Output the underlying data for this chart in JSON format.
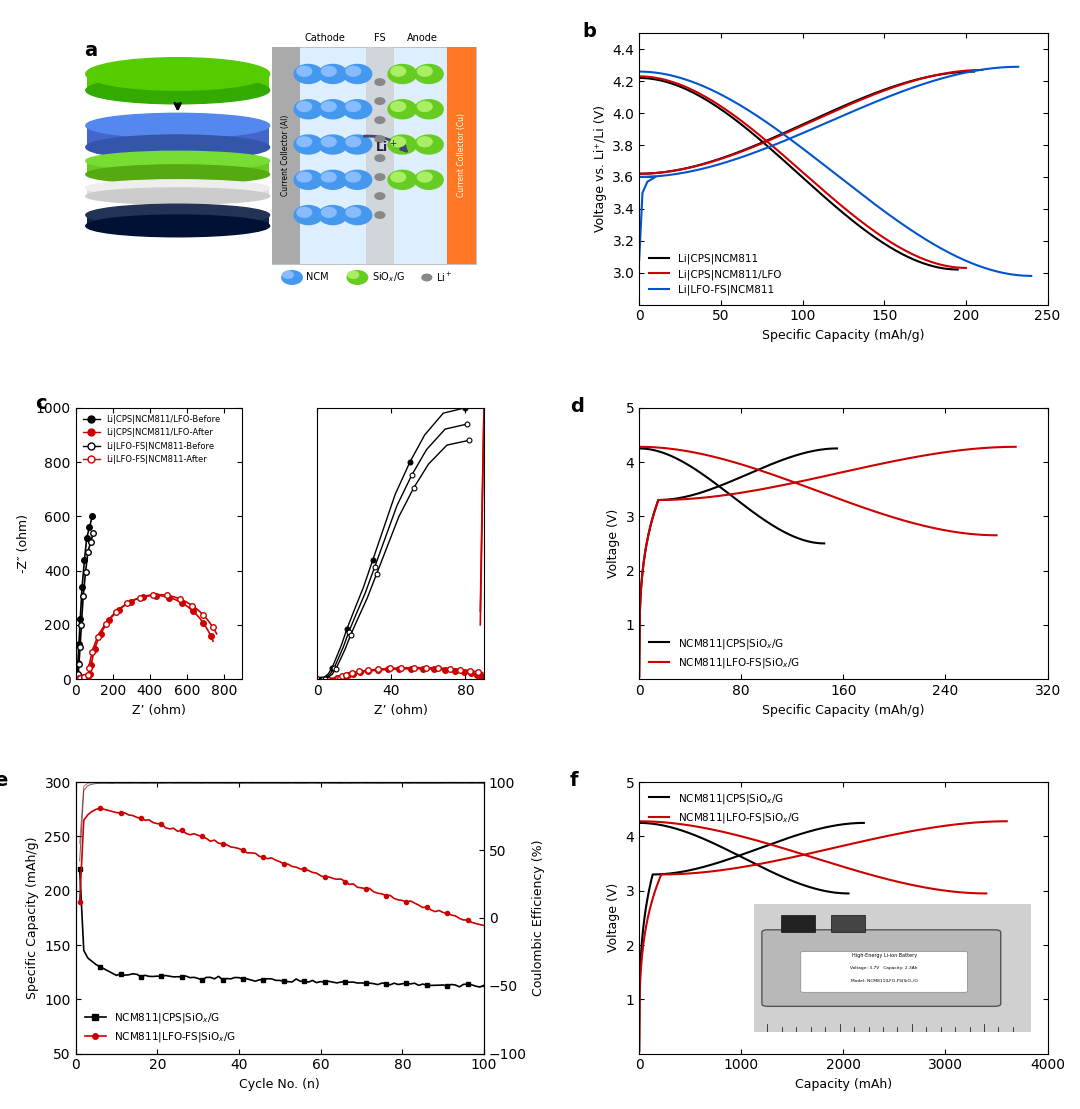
{
  "panel_b": {
    "xlabel": "Specific Capacity (mAh/g)",
    "ylabel": "Voltage vs. Li⁺/Li (V)",
    "xlim": [
      0,
      250
    ],
    "ylim": [
      2.8,
      4.5
    ],
    "yticks": [
      3.0,
      3.2,
      3.4,
      3.6,
      3.8,
      4.0,
      4.2,
      4.4
    ],
    "xticks": [
      0,
      50,
      100,
      150,
      200,
      250
    ],
    "legend": [
      "Li|CPS|NCM811",
      "Li|CPS|NCM811/LFO",
      "Li|LFO-FS|NCM811"
    ],
    "colors": [
      "#000000",
      "#cc0000",
      "#0055cc"
    ]
  },
  "panel_c": {
    "xlabel": "Z’ (ohm)",
    "ylabel": "-Z″ (ohm)",
    "xlim1": [
      0,
      900
    ],
    "ylim1": [
      0,
      1000
    ],
    "xlim2": [
      0,
      90
    ],
    "ylim2": [
      0,
      1000
    ],
    "yticks": [
      0,
      200,
      400,
      600,
      800,
      1000
    ],
    "xticks1": [
      0,
      200,
      400,
      600,
      800
    ],
    "xticks2": [
      0,
      40,
      80
    ],
    "legend": [
      "Li|CPS|NCM811/LFO-Before",
      "Li|CPS|NCM811/LFO-After",
      "Li|LFO-FS|NCM811-Before",
      "Li|LFO-FS|NCM811-After"
    ]
  },
  "panel_d": {
    "xlabel": "Specific Capacity (mAh/g)",
    "ylabel": "Voltage (V)",
    "xlim": [
      0,
      320
    ],
    "ylim": [
      0,
      5.0
    ],
    "yticks": [
      1.0,
      2.0,
      3.0,
      4.0,
      5.0
    ],
    "xticks": [
      0,
      80,
      160,
      240,
      320
    ],
    "legend": [
      "NCM811|CPS|SiOx/G",
      "NCM811|LFO-FS|SiOx/G"
    ]
  },
  "panel_e": {
    "xlabel": "Cycle No. (n)",
    "ylabel_left": "Specific Capacity (mAh/g)",
    "ylabel_right": "Coulombic Efficiency (%)",
    "xlim": [
      0,
      100
    ],
    "ylim_left": [
      50,
      300
    ],
    "ylim_right": [
      -100,
      100
    ],
    "yticks_left": [
      50,
      100,
      150,
      200,
      250,
      300
    ],
    "yticks_right": [
      -100,
      -50,
      0,
      50,
      100
    ],
    "xticks": [
      0,
      20,
      40,
      60,
      80,
      100
    ],
    "legend": [
      "NCM811|CPS|SiOx/G",
      "NCM811|LFO-FS|SiOx/G"
    ]
  },
  "panel_f": {
    "xlabel": "Capacity (mAh)",
    "ylabel": "Voltage (V)",
    "xlim": [
      0,
      4000
    ],
    "ylim": [
      0,
      5.0
    ],
    "yticks": [
      1.0,
      2.0,
      3.0,
      4.0,
      5.0
    ],
    "xticks": [
      0,
      1000,
      2000,
      3000,
      4000
    ],
    "legend": [
      "NCM811|CPS|SiOx/G",
      "NCM811|LFO-FS|SiOx/G"
    ]
  }
}
